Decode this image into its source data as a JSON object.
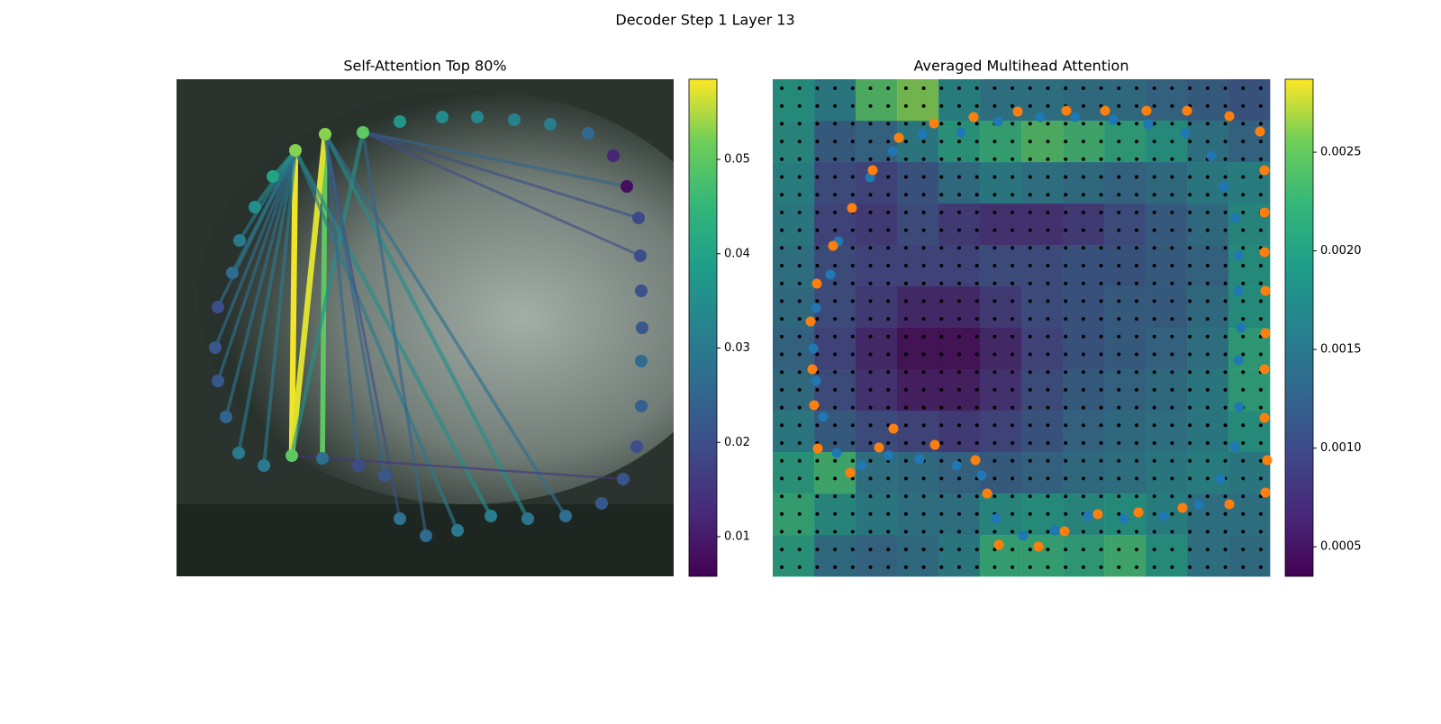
{
  "figure_title": "Decoder Step 1 Layer 13",
  "chart_data": [
    {
      "type": "graph",
      "title": "Self-Attention Top 80%",
      "colormap": "viridis",
      "clim": [
        0.0058,
        0.0585
      ],
      "cticks": [
        0.01,
        0.02,
        0.03,
        0.04,
        0.05
      ],
      "nodes": {
        "x": [
          132,
          165,
          207,
          248,
          295,
          334,
          375,
          415,
          457,
          485,
          500,
          513,
          515,
          516,
          517,
          516,
          516,
          511,
          496,
          472,
          432,
          390,
          349,
          312,
          277,
          248,
          231,
          202,
          162,
          128,
          97,
          69,
          55,
          46,
          43,
          46,
          62,
          70,
          87,
          107
        ],
        "y": [
          79,
          61,
          59,
          47,
          42,
          42,
          45,
          50,
          60,
          85,
          119,
          154,
          196,
          235,
          276,
          313,
          363,
          408,
          444,
          471,
          485,
          488,
          485,
          501,
          507,
          488,
          440,
          429,
          421,
          418,
          429,
          415,
          375,
          335,
          298,
          253,
          215,
          179,
          142,
          108
        ],
        "values": [
          0.053,
          0.053,
          0.05,
          0.037,
          0.034,
          0.033,
          0.032,
          0.031,
          0.026,
          0.012,
          0.008,
          0.019,
          0.02,
          0.021,
          0.022,
          0.026,
          0.024,
          0.02,
          0.021,
          0.022,
          0.027,
          0.029,
          0.031,
          0.03,
          0.026,
          0.028,
          0.022,
          0.02,
          0.027,
          0.05,
          0.03,
          0.03,
          0.025,
          0.022,
          0.022,
          0.02,
          0.026,
          0.03,
          0.035,
          0.04
        ]
      },
      "edges": {
        "source": [
          0,
          1,
          1,
          2,
          0,
          0,
          1,
          1,
          2,
          2,
          2,
          2,
          0,
          0,
          0,
          0,
          0,
          0,
          0,
          0,
          0,
          1,
          1,
          1,
          29,
          0
        ],
        "target": [
          29,
          28,
          29,
          29,
          22,
          23,
          21,
          20,
          24,
          10,
          11,
          12,
          30,
          31,
          32,
          33,
          34,
          35,
          36,
          37,
          38,
          25,
          26,
          27,
          18,
          39
        ],
        "values": [
          0.058,
          0.05,
          0.057,
          0.036,
          0.035,
          0.03,
          0.035,
          0.027,
          0.025,
          0.025,
          0.02,
          0.02,
          0.03,
          0.03,
          0.028,
          0.027,
          0.027,
          0.027,
          0.03,
          0.03,
          0.035,
          0.02,
          0.025,
          0.025,
          0.015,
          0.035
        ]
      }
    },
    {
      "type": "heatmap",
      "title": "Averaged Multihead Attention",
      "colormap": "viridis",
      "clim": [
        0.00035,
        0.00287
      ],
      "cticks": [
        0.0005,
        {
          "value": 0.001,
          "label": "0.0010"
        },
        0.0015,
        {
          "value": 0.002,
          "label": "0.0020"
        },
        0.0025
      ],
      "values": [
        [
          0.0019,
          0.0016,
          0.0024,
          0.0026,
          0.0017,
          0.0015,
          0.0015,
          0.0014,
          0.0014,
          0.0013,
          0.0012,
          0.0011
        ],
        [
          0.0018,
          0.0012,
          0.0013,
          0.0016,
          0.002,
          0.0022,
          0.0024,
          0.0023,
          0.0021,
          0.0019,
          0.0015,
          0.0013
        ],
        [
          0.0017,
          0.001,
          0.0009,
          0.0011,
          0.0014,
          0.0016,
          0.0015,
          0.0014,
          0.0013,
          0.0014,
          0.0016,
          0.0017
        ],
        [
          0.0016,
          0.0009,
          0.0008,
          0.001,
          0.0008,
          0.0007,
          0.0007,
          0.0008,
          0.001,
          0.0012,
          0.0014,
          0.0018
        ],
        [
          0.0015,
          0.001,
          0.0009,
          0.0009,
          0.0009,
          0.001,
          0.001,
          0.0011,
          0.0011,
          0.0012,
          0.0013,
          0.0019
        ],
        [
          0.0014,
          0.001,
          0.0008,
          0.0006,
          0.0006,
          0.0008,
          0.001,
          0.0011,
          0.0012,
          0.0012,
          0.0014,
          0.0019
        ],
        [
          0.0013,
          0.0009,
          0.0006,
          0.0004,
          0.0004,
          0.0006,
          0.0009,
          0.0011,
          0.0012,
          0.0013,
          0.0015,
          0.0021
        ],
        [
          0.0014,
          0.001,
          0.0007,
          0.0005,
          0.0005,
          0.0007,
          0.001,
          0.0012,
          0.0013,
          0.0014,
          0.0016,
          0.0021
        ],
        [
          0.0016,
          0.0012,
          0.001,
          0.0009,
          0.0008,
          0.0009,
          0.0011,
          0.0013,
          0.0014,
          0.0015,
          0.0016,
          0.0019
        ],
        [
          0.002,
          0.0023,
          0.0015,
          0.0014,
          0.0013,
          0.0012,
          0.0013,
          0.0014,
          0.0015,
          0.0016,
          0.0017,
          0.0016
        ],
        [
          0.0022,
          0.0018,
          0.0016,
          0.0015,
          0.0015,
          0.0018,
          0.0019,
          0.0018,
          0.0019,
          0.0017,
          0.0015,
          0.0015
        ],
        [
          0.002,
          0.0014,
          0.0013,
          0.0014,
          0.0016,
          0.0022,
          0.0022,
          0.0021,
          0.0023,
          0.0019,
          0.0015,
          0.0014
        ]
      ],
      "series": [
        {
          "color": "#1f77b4",
          "x": [
            73,
            64,
            48,
            45,
            48,
            56,
            71,
            99,
            129,
            163,
            204,
            232,
            248,
            278,
            313,
            350,
            390,
            434,
            473,
            497,
            513,
            518,
            517,
            520,
            517,
            517,
            514,
            501,
            487,
            458,
            417,
            378,
            336,
            297,
            250,
            209,
            166,
            133,
            108
          ],
          "y": [
            180,
            217,
            254,
            299,
            335,
            375,
            415,
            429,
            418,
            422,
            429,
            440,
            488,
            507,
            501,
            485,
            488,
            485,
            472,
            444,
            408,
            364,
            312,
            276,
            235,
            196,
            154,
            119,
            85,
            60,
            50,
            45,
            42,
            42,
            47,
            59,
            61,
            80,
            109
          ]
        },
        {
          "color": "#ff7f0e",
          "x": [
            179,
            140,
            111,
            88,
            67,
            49,
            42,
            44,
            46,
            50,
            86,
            118,
            134,
            180,
            225,
            238,
            251,
            295,
            324,
            361,
            406,
            455,
            507,
            547,
            549,
            546,
            546,
            547,
            547,
            546,
            546,
            546,
            541,
            507,
            460,
            415,
            369,
            326,
            272,
            223
          ],
          "y": [
            49,
            65,
            101,
            143,
            185,
            227,
            269,
            322,
            362,
            410,
            437,
            409,
            388,
            406,
            423,
            460,
            517,
            519,
            502,
            483,
            481,
            476,
            472,
            459,
            423,
            376,
            322,
            282,
            235,
            192,
            148,
            101,
            58,
            41,
            35,
            35,
            35,
            35,
            36,
            42
          ]
        }
      ]
    }
  ]
}
